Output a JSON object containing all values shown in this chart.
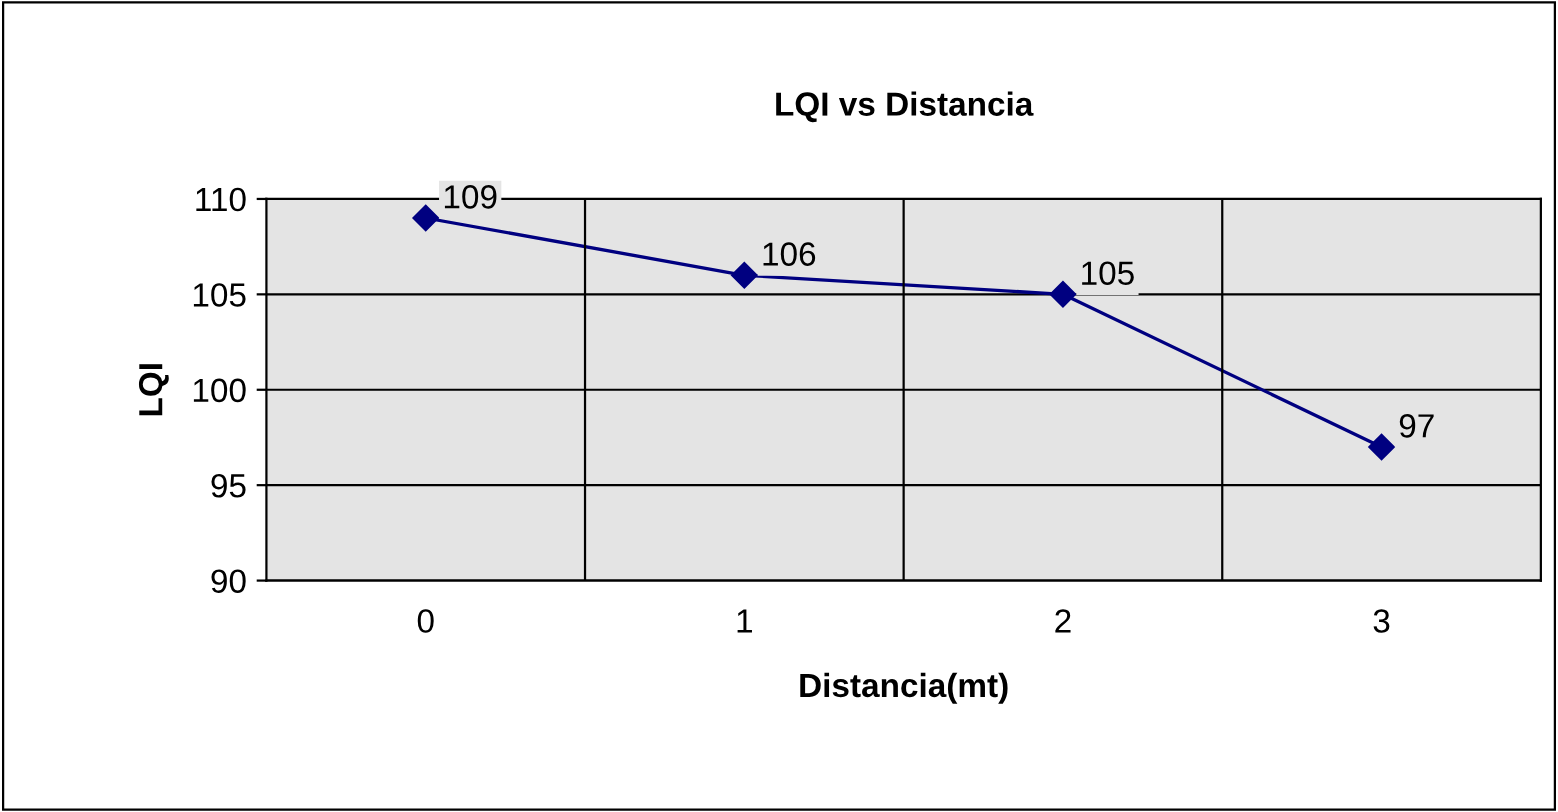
{
  "chart_data": {
    "type": "line",
    "title": "LQI vs Distancia",
    "xlabel": "Distancia(mt)",
    "ylabel": "LQI",
    "categories": [
      "0",
      "1",
      "2",
      "3"
    ],
    "series": [
      {
        "color": "#000080",
        "values": [
          109,
          106,
          105,
          97
        ]
      }
    ],
    "ylim": [
      90,
      110
    ],
    "yticks": [
      90,
      95,
      100,
      105,
      110
    ],
    "grid": true,
    "marker": "diamond",
    "line_style": "solid",
    "data_labels": true,
    "legend": false
  }
}
